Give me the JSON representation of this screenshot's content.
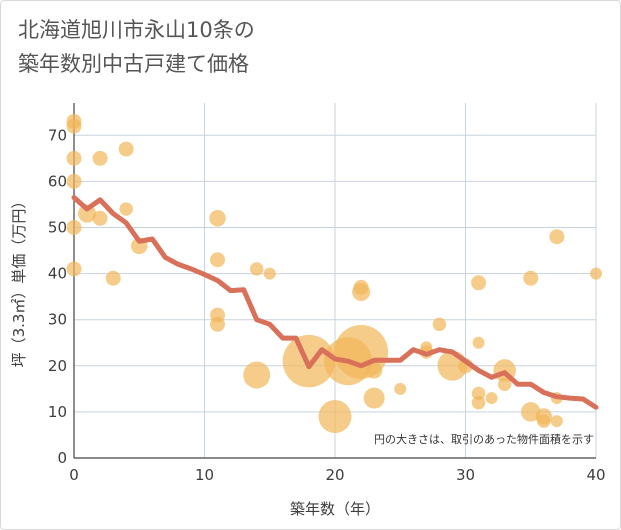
{
  "title_line1": "北海道旭川市永山10条の",
  "title_line2": "築年数別中古戸建て価格",
  "chart_data": {
    "type": "scatter",
    "xlabel": "築年数（年）",
    "ylabel": "坪（3.3㎡）単価（万円）",
    "xlim": [
      0,
      40
    ],
    "ylim": [
      0,
      77
    ],
    "x_ticks": [
      0,
      10,
      20,
      30,
      40
    ],
    "y_ticks": [
      0,
      10,
      20,
      30,
      40,
      50,
      60,
      70
    ],
    "grid": true,
    "note": "円の大きさは、取引のあった物件面積を示す",
    "colors": {
      "bubble": "#f2b65a",
      "line": "#d9705a",
      "grid": "#c8d3e0"
    },
    "series": [
      {
        "type": "bubble",
        "points": [
          {
            "x": 0,
            "y": 73,
            "s": 1
          },
          {
            "x": 0,
            "y": 72,
            "s": 1
          },
          {
            "x": 0,
            "y": 65,
            "s": 1
          },
          {
            "x": 0,
            "y": 60,
            "s": 1
          },
          {
            "x": 0,
            "y": 50,
            "s": 1
          },
          {
            "x": 0,
            "y": 41,
            "s": 1
          },
          {
            "x": 1,
            "y": 53,
            "s": 1.2
          },
          {
            "x": 2,
            "y": 65,
            "s": 1
          },
          {
            "x": 2,
            "y": 52,
            "s": 1
          },
          {
            "x": 3,
            "y": 39,
            "s": 1
          },
          {
            "x": 4,
            "y": 67,
            "s": 1
          },
          {
            "x": 4,
            "y": 54,
            "s": 0.9
          },
          {
            "x": 5,
            "y": 46,
            "s": 1.1
          },
          {
            "x": 11,
            "y": 52,
            "s": 1.1
          },
          {
            "x": 11,
            "y": 43,
            "s": 1
          },
          {
            "x": 11,
            "y": 31,
            "s": 1
          },
          {
            "x": 11,
            "y": 29,
            "s": 1
          },
          {
            "x": 14,
            "y": 41,
            "s": 0.9
          },
          {
            "x": 14,
            "y": 18,
            "s": 1.8
          },
          {
            "x": 15,
            "y": 40,
            "s": 0.8
          },
          {
            "x": 18,
            "y": 21,
            "s": 3.5
          },
          {
            "x": 20,
            "y": 9,
            "s": 2.2
          },
          {
            "x": 21,
            "y": 21,
            "s": 3.2
          },
          {
            "x": 22,
            "y": 23,
            "s": 3.6
          },
          {
            "x": 22,
            "y": 37,
            "s": 1
          },
          {
            "x": 22,
            "y": 36,
            "s": 1.2
          },
          {
            "x": 23,
            "y": 13,
            "s": 1.4
          },
          {
            "x": 23,
            "y": 19,
            "s": 1.1
          },
          {
            "x": 25,
            "y": 15,
            "s": 0.8
          },
          {
            "x": 27,
            "y": 23,
            "s": 0.9
          },
          {
            "x": 27,
            "y": 24,
            "s": 0.8
          },
          {
            "x": 28,
            "y": 29,
            "s": 0.9
          },
          {
            "x": 29,
            "y": 20,
            "s": 2
          },
          {
            "x": 30,
            "y": 20,
            "s": 1
          },
          {
            "x": 31,
            "y": 38,
            "s": 1
          },
          {
            "x": 31,
            "y": 25,
            "s": 0.8
          },
          {
            "x": 31,
            "y": 14,
            "s": 0.9
          },
          {
            "x": 31,
            "y": 12,
            "s": 0.9
          },
          {
            "x": 32,
            "y": 13,
            "s": 0.8
          },
          {
            "x": 33,
            "y": 19,
            "s": 1.5
          },
          {
            "x": 33,
            "y": 16,
            "s": 0.9
          },
          {
            "x": 35,
            "y": 39,
            "s": 1
          },
          {
            "x": 35,
            "y": 10,
            "s": 1.3
          },
          {
            "x": 36,
            "y": 9,
            "s": 1.1
          },
          {
            "x": 36,
            "y": 8,
            "s": 0.9
          },
          {
            "x": 37,
            "y": 48,
            "s": 1
          },
          {
            "x": 37,
            "y": 13,
            "s": 0.8
          },
          {
            "x": 37,
            "y": 8,
            "s": 0.8
          },
          {
            "x": 40,
            "y": 40,
            "s": 0.8
          }
        ]
      },
      {
        "type": "line",
        "x": [
          0,
          1,
          2,
          3,
          4,
          5,
          6,
          7,
          8,
          9,
          10,
          11,
          12,
          13,
          14,
          15,
          16,
          17,
          18,
          19,
          20,
          21,
          22,
          23,
          24,
          25,
          26,
          27,
          28,
          29,
          30,
          31,
          32,
          33,
          34,
          35,
          36,
          37,
          38,
          39,
          40
        ],
        "y": [
          56.5,
          54,
          56,
          53,
          51,
          47,
          47.5,
          43.5,
          42,
          41,
          39.8,
          38.5,
          36.3,
          36.5,
          30,
          29,
          26,
          26,
          19.8,
          23.5,
          21.5,
          21,
          20,
          21.2,
          21.2,
          21.2,
          23.5,
          22.5,
          23.5,
          23,
          21,
          19,
          17.5,
          18.5,
          16,
          16,
          14.2,
          13.3,
          13,
          12.8,
          11
        ]
      }
    ]
  }
}
